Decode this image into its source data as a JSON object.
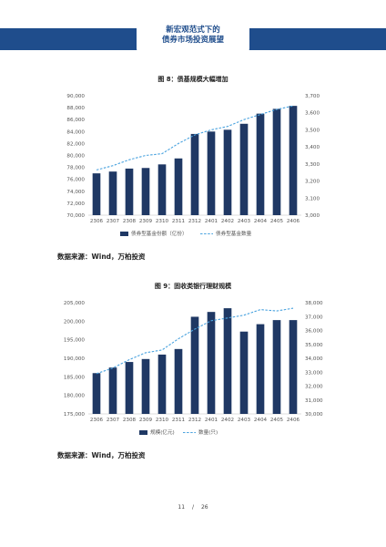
{
  "header": {
    "line1": "新宏观范式下的",
    "line2": "债券市场投资展望"
  },
  "figures": [
    {
      "title": "图 8：债基规模大幅增加",
      "source": "数据来源：Wind，万柏投资"
    },
    {
      "title": "图 9：固收类银行理财规模",
      "source": "数据来源：Wind，万柏投资"
    }
  ],
  "footer": {
    "page": "11",
    "sep": "/",
    "total": "26"
  },
  "colors": {
    "bar": "#1f3864",
    "line": "#4aa3df",
    "header": "#1f4d8c"
  },
  "chart_data": [
    {
      "type": "bar",
      "categories": [
        "2306",
        "2307",
        "2308",
        "2309",
        "2310",
        "2311",
        "2312",
        "2401",
        "2402",
        "2403",
        "2404",
        "2405",
        "2406"
      ],
      "series": [
        {
          "name": "债券型基金份额（亿份）",
          "type": "bar",
          "axis": "left",
          "values": [
            77000,
            77300,
            77800,
            77900,
            78500,
            79500,
            83600,
            84000,
            84300,
            85300,
            87000,
            87800,
            88300
          ]
        },
        {
          "name": "债券型基金数量",
          "type": "line",
          "axis": "right",
          "values": [
            3265,
            3290,
            3325,
            3350,
            3360,
            3420,
            3470,
            3500,
            3520,
            3560,
            3590,
            3620,
            3640
          ]
        }
      ],
      "ylim": [
        70000,
        90000
      ],
      "yticks": [
        "70,000",
        "72,000",
        "74,000",
        "76,000",
        "78,000",
        "80,000",
        "82,000",
        "84,000",
        "86,000",
        "88,000",
        "90,000"
      ],
      "y2lim": [
        3000,
        3700
      ],
      "y2ticks": [
        "3,000",
        "3,100",
        "3,200",
        "3,300",
        "3,400",
        "3,500",
        "3,600",
        "3,700"
      ],
      "legend": "bottom"
    },
    {
      "type": "bar",
      "categories": [
        "2306",
        "2307",
        "2308",
        "2309",
        "2310",
        "2311",
        "2312",
        "2401",
        "2402",
        "2403",
        "2404",
        "2405",
        "2406"
      ],
      "series": [
        {
          "name": "规模(亿元)",
          "type": "bar",
          "axis": "left",
          "values": [
            186000,
            187500,
            189000,
            189800,
            191000,
            192500,
            201200,
            202500,
            203500,
            197200,
            199200,
            200300,
            200300
          ]
        },
        {
          "name": "数量(只)",
          "type": "line",
          "axis": "right",
          "values": [
            32900,
            33300,
            33900,
            34400,
            34600,
            35400,
            36100,
            36700,
            36900,
            37100,
            37500,
            37400,
            37600
          ]
        }
      ],
      "ylim": [
        175000,
        205000
      ],
      "yticks": [
        "175,000",
        "180,000",
        "185,000",
        "190,000",
        "195,000",
        "200,000",
        "205,000"
      ],
      "y2lim": [
        30000,
        38000
      ],
      "y2ticks": [
        "30,000",
        "31,000",
        "32,000",
        "33,000",
        "34,000",
        "35,000",
        "36,000",
        "37,000",
        "38,000"
      ],
      "legend": "bottom"
    }
  ]
}
